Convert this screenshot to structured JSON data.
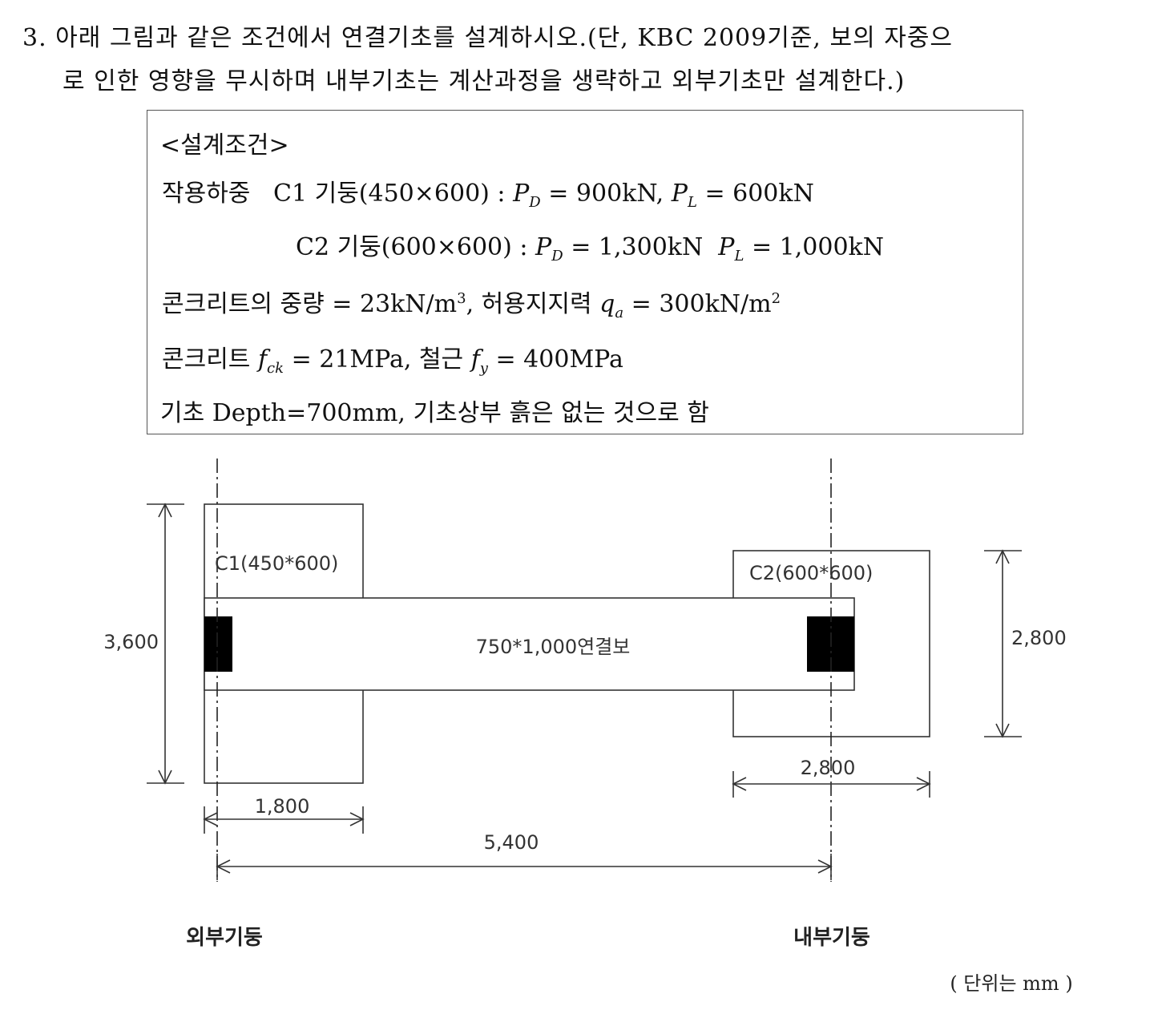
{
  "question": {
    "line1": "3. 아래 그림과 같은 조건에서 연결기초를 설계하시오.(단, KBC 2009기준, 보의 자중으",
    "line2": "로 인한 영향을 무시하며 내부기초는 계산과정을 생략하고 외부기초만 설계한다.)"
  },
  "conditions": {
    "heading": "<설계조건>",
    "load_label": "작용하중",
    "c1": {
      "name": "C1 기둥(450×600) :",
      "pd_sym": "P",
      "pd_sub": "D",
      "pd_val": "= 900kN,",
      "pl_sym": "P",
      "pl_sub": "L",
      "pl_val": "=  600kN"
    },
    "c2": {
      "name": "C2 기둥(600×600) :",
      "pd_sym": "P",
      "pd_sub": "D",
      "pd_val": "=  1,300kN",
      "pl_sym": "P",
      "pl_sub": "L",
      "pl_val": "=  1,000kN"
    },
    "concrete_weight": {
      "text": "콘크리트의 중량 = 23kN/m",
      "sup": "3",
      "mid": ", 허용지지력 ",
      "sym": "q",
      "sub": "a",
      "val": " = 300kN/m",
      "sup2": "2"
    },
    "materials": {
      "text1": "콘크리트 ",
      "fck_sym": "f",
      "fck_sub": "ck",
      "fck_val": " = 21MPa, 철근 ",
      "fy_sym": "f",
      "fy_sub": "y",
      "fy_val": " = 400MPa"
    },
    "depth": "기초 Depth=700mm, 기초상부 흙은 없는 것으로 함"
  },
  "diagram": {
    "c1_label": "C1(450*600)",
    "c2_label": "C2(600*600)",
    "beam_label": "750*1,000연결보",
    "dim_c1_height": "3,600",
    "dim_c2_height": "2,800",
    "dim_c2_width": "2,800",
    "dim_c1_width": "1,800",
    "dim_span": "5,400",
    "exterior_label": "외부기둥",
    "interior_label": "내부기둥",
    "unit_note": "( 단위는 mm )"
  }
}
